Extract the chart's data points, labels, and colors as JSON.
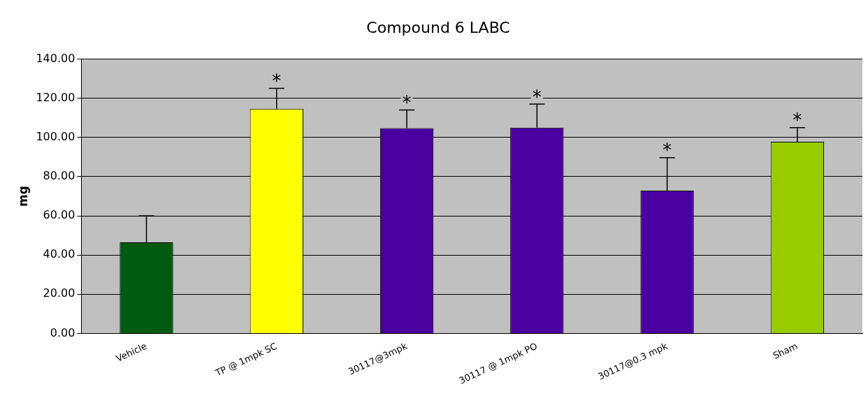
{
  "chart_data": {
    "type": "bar",
    "title": "Compound 6 LABC",
    "ylabel": "mg",
    "categories": [
      "Vehicle",
      "TP @ 1mpk SC",
      "30117@3mpk",
      "30117 @ 1mpk PO",
      "30117@0.3 mpk",
      "Sham"
    ],
    "values": [
      46.5,
      114.6,
      104.7,
      105,
      72.8,
      97.8
    ],
    "colors": [
      "#005a10",
      "#ffff00",
      "#4b00a0",
      "#4b00a0",
      "#4b00a0",
      "#99cc00"
    ],
    "errors": [
      [
        46.5,
        60
      ],
      [
        114.6,
        125
      ],
      [
        104.7,
        114
      ],
      [
        105,
        117
      ],
      [
        72.8,
        89.7
      ],
      [
        97.8,
        105
      ]
    ],
    "ylim": [
      0,
      140
    ],
    "yticks": [
      {
        "value": 0,
        "label": "0.00"
      },
      {
        "value": 20,
        "label": "20.00"
      },
      {
        "value": 40,
        "label": "40.00"
      },
      {
        "value": 60,
        "label": "60.00"
      },
      {
        "value": 80,
        "label": "80.00"
      },
      {
        "value": 100,
        "label": "100.00"
      },
      {
        "value": 120,
        "label": "120.00"
      },
      {
        "value": 140,
        "label": "140.00"
      }
    ],
    "grid": "y",
    "legend": false,
    "annotations": [
      {
        "text": "*",
        "x": "TP @ 1mpk SC",
        "y": 125
      },
      {
        "text": "*",
        "x": "30117@3mpk",
        "y": 114
      },
      {
        "text": "*",
        "x": "30117 @ 1mpk PO",
        "y": 117
      },
      {
        "text": "*",
        "x": "30117@0.3 mpk",
        "y": 89.7
      },
      {
        "text": "*",
        "x": "Sham",
        "y": 105
      }
    ]
  }
}
